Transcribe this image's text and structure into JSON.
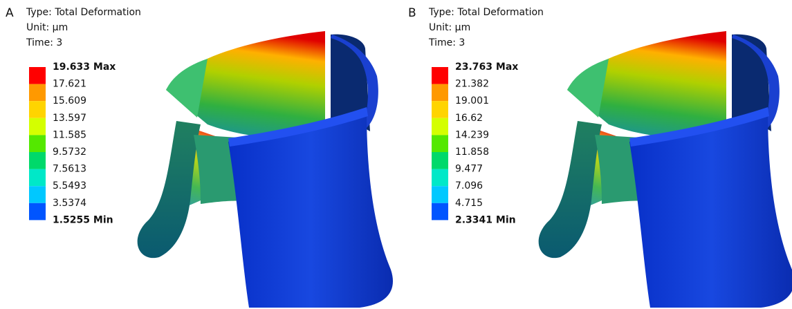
{
  "panels": [
    {
      "letter": "A",
      "type": "Type: Total Deformation",
      "unit": "Unit: µm",
      "time": "Time: 3",
      "legend": [
        "19.633 Max",
        "17.621",
        "15.609",
        "13.597",
        "11.585",
        "9.5732",
        "7.5613",
        "5.5493",
        "3.5374",
        "1.5255 Min"
      ],
      "bands": [
        "#ff0000",
        "#ff9900",
        "#ffd400",
        "#d4ff00",
        "#54e800",
        "#00d96a",
        "#00e8c8",
        "#00c8ff",
        "#0055ff"
      ]
    },
    {
      "letter": "B",
      "type": "Type: Total Deformation",
      "unit": "Unit: µm",
      "time": "Time: 3",
      "legend": [
        "23.763 Max",
        "21.382",
        "19.001",
        "16.62",
        "14.239",
        "11.858",
        "9.477",
        "7.096",
        "4.715",
        "2.3341 Min"
      ],
      "bands": [
        "#ff0000",
        "#ff9900",
        "#ffd400",
        "#d4ff00",
        "#54e800",
        "#00d96a",
        "#00e8c8",
        "#00c8ff",
        "#0055ff"
      ]
    }
  ]
}
